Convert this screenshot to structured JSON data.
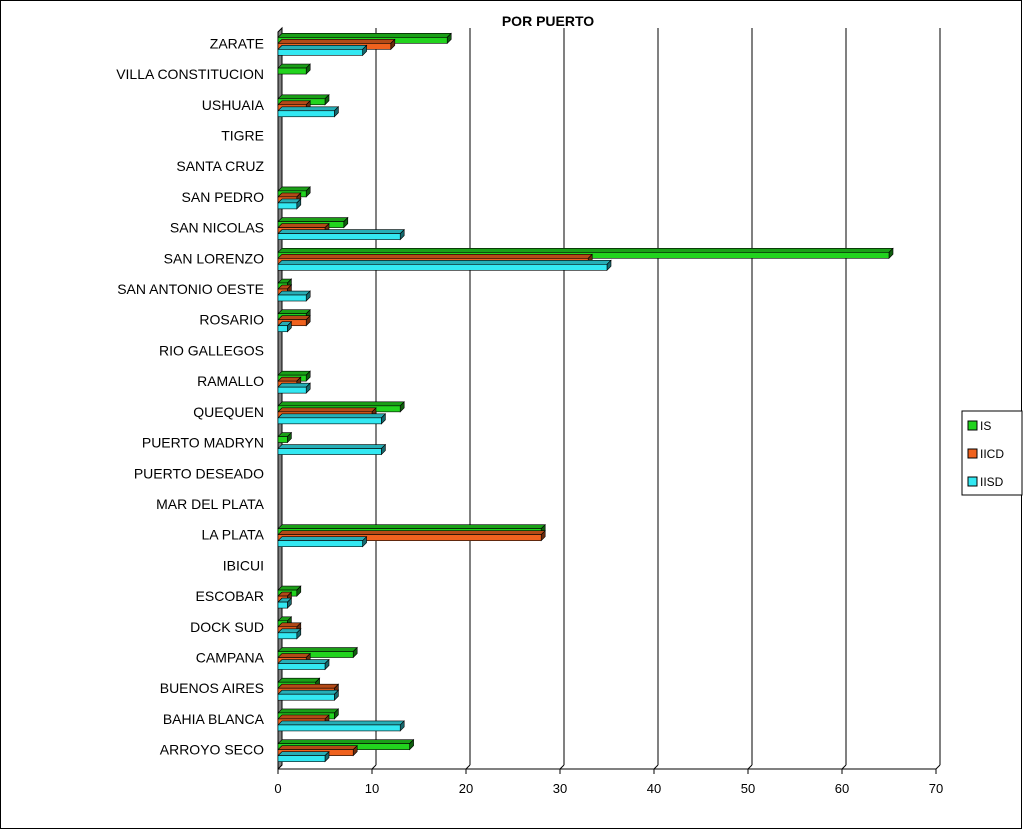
{
  "chart_data": {
    "type": "bar",
    "orientation": "horizontal",
    "title": "POR PUERTO",
    "xlabel": "",
    "ylabel": "",
    "xlim": [
      0,
      70
    ],
    "x_ticks": [
      0,
      10,
      20,
      30,
      40,
      50,
      60,
      70
    ],
    "x_tick_labels": [
      "0",
      "10",
      "20",
      "30",
      "40",
      "50",
      "60",
      "70"
    ],
    "grid": "vertical",
    "legend_position": "right",
    "categories": [
      "ZARATE",
      "VILLA CONSTITUCION",
      "USHUAIA",
      "TIGRE",
      "SANTA CRUZ",
      "SAN PEDRO",
      "SAN NICOLAS",
      "SAN LORENZO",
      "SAN ANTONIO OESTE",
      "ROSARIO",
      "RIO GALLEGOS",
      "RAMALLO",
      "QUEQUEN",
      "PUERTO MADRYN",
      "PUERTO DESEADO",
      "MAR DEL PLATA",
      "LA PLATA",
      "IBICUI",
      "ESCOBAR",
      "DOCK SUD",
      "CAMPANA",
      "BUENOS AIRES",
      "BAHIA BLANCA",
      "ARROYO SECO"
    ],
    "series": [
      {
        "name": "IS",
        "color": "#22d41e",
        "values": [
          18,
          3,
          5,
          0,
          0,
          3,
          7,
          65,
          1,
          3,
          0,
          3,
          13,
          1,
          0,
          0,
          28,
          0,
          2,
          1,
          8,
          4,
          6,
          14
        ]
      },
      {
        "name": "IICD",
        "color": "#f0621e",
        "values": [
          12,
          0,
          3,
          0,
          0,
          2,
          5,
          33,
          1,
          3,
          0,
          2,
          10,
          0,
          0,
          0,
          28,
          0,
          1,
          2,
          3,
          6,
          5,
          8
        ]
      },
      {
        "name": "IISD",
        "color": "#33e8f2",
        "values": [
          9,
          0,
          6,
          0,
          0,
          2,
          13,
          35,
          3,
          1,
          0,
          3,
          11,
          11,
          0,
          0,
          9,
          0,
          1,
          2,
          5,
          6,
          13,
          5
        ]
      }
    ]
  }
}
